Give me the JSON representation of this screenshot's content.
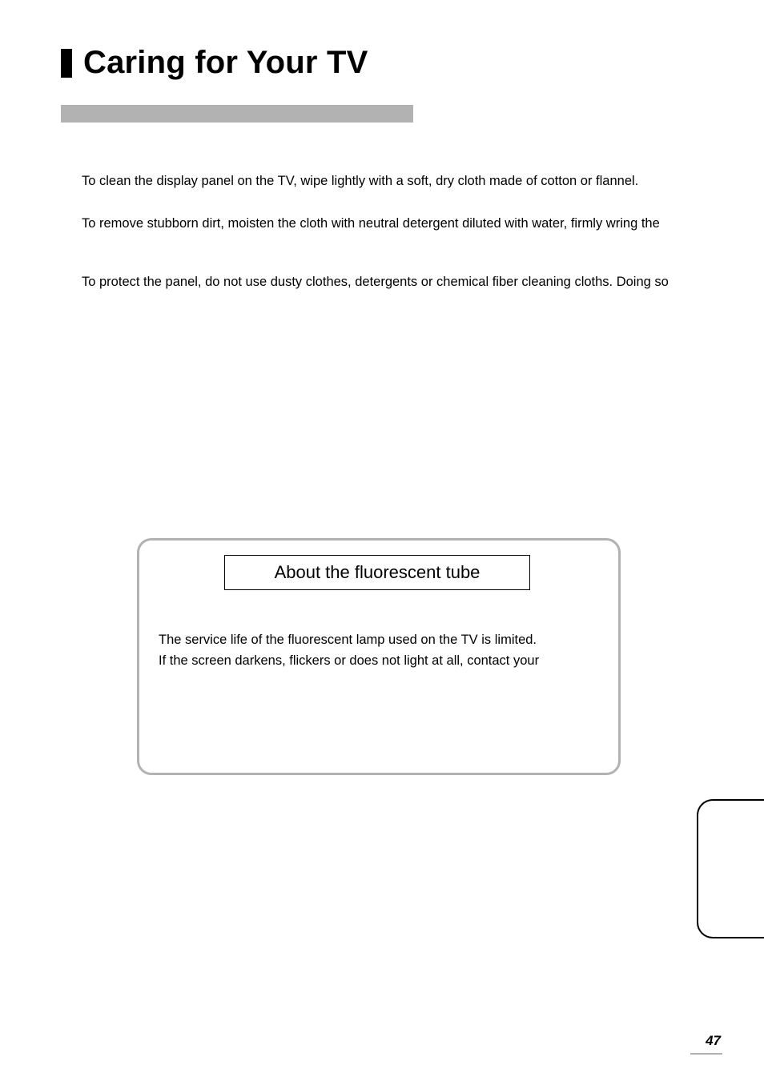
{
  "colors": {
    "text": "#000000",
    "background": "#ffffff",
    "gray_bar": "#b2b2b2",
    "callout_border": "#b2b2b2",
    "page_underline": "#b2b2b2"
  },
  "typography": {
    "title_fontsize": 40,
    "title_weight": 700,
    "body_fontsize": 16.5,
    "callout_title_fontsize": 22,
    "page_number_fontsize": 17
  },
  "title": "Caring for Your TV",
  "paragraphs": {
    "p1": "To clean the display panel on the TV, wipe lightly with a soft, dry cloth made of cotton or flannel.",
    "p2": "To remove stubborn dirt, moisten the cloth with neutral detergent diluted with water, firmly wring the",
    "p3": "To protect the panel, do not use dusty clothes, detergents or chemical fiber cleaning cloths. Doing so"
  },
  "callout": {
    "title": "About the fluorescent tube",
    "line1": "The service life of the fluorescent lamp used on the TV is limited.",
    "line2": "If the screen darkens, flickers or does not light at all, contact your"
  },
  "page_number": "47"
}
